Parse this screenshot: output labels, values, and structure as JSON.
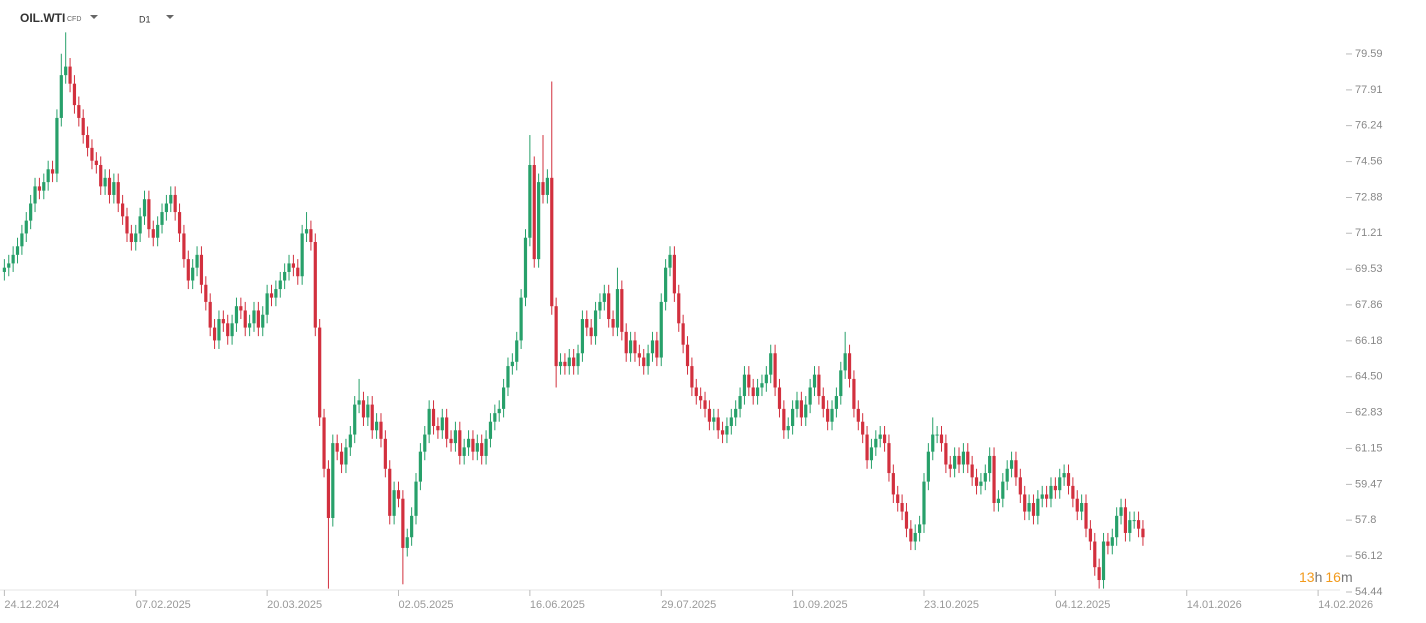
{
  "header": {
    "symbol": "OIL.WTI",
    "instrument_type": "CFD",
    "timeframe": "D1"
  },
  "countdown": {
    "hours": "13",
    "hours_unit": "h",
    "minutes": "16",
    "minutes_unit": "m"
  },
  "chart_data": {
    "type": "candlestick",
    "up_color": "#27a06a",
    "down_color": "#d2303e",
    "xlim": [
      -1,
      305
    ],
    "xticks": [
      {
        "value": 0,
        "label": "24.12.2024"
      },
      {
        "value": 30,
        "label": "07.02.2025"
      },
      {
        "value": 60,
        "label": "20.03.2025"
      },
      {
        "value": 90,
        "label": "02.05.2025"
      },
      {
        "value": 120,
        "label": "16.06.2025"
      },
      {
        "value": 150,
        "label": "29.07.2025"
      },
      {
        "value": 180,
        "label": "10.09.2025"
      },
      {
        "value": 210,
        "label": "23.10.2025"
      },
      {
        "value": 240,
        "label": "04.12.2025"
      },
      {
        "value": 270,
        "label": "14.01.2026"
      },
      {
        "value": 300,
        "label": "14.02.2026"
      }
    ],
    "ylim": [
      54.3,
      80.71
    ],
    "yticks": [
      79.59,
      77.91,
      76.24,
      74.56,
      72.88,
      71.21,
      69.53,
      67.86,
      66.18,
      {
        "value": 64.5,
        "label": "64.50"
      },
      62.83,
      61.15,
      59.47,
      57.8,
      56.12,
      54.44
    ],
    "open": [
      69.4,
      69.6,
      69.8,
      70.2,
      70.6,
      71.2,
      71.8,
      72.6,
      73.4,
      73.2,
      73.6,
      74.2,
      74.0,
      76.6,
      78.6,
      79.0,
      78.2,
      77.2,
      76.6,
      75.8,
      75.2,
      74.6,
      74.4,
      73.4,
      73.8,
      73.0,
      73.6,
      72.6,
      72.0,
      71.2,
      70.8,
      71.2,
      72.0,
      72.8,
      71.4,
      71.0,
      71.6,
      72.2,
      72.6,
      73.0,
      72.2,
      71.2,
      70.0,
      69.0,
      69.6,
      70.2,
      68.8,
      68.0,
      66.8,
      66.2,
      67.2,
      67.0,
      66.4,
      67.0,
      67.8,
      67.6,
      66.8,
      67.0,
      67.6,
      66.8,
      67.4,
      68.4,
      68.2,
      68.6,
      69.0,
      69.4,
      69.8,
      69.6,
      69.2,
      71.2,
      71.4,
      70.8,
      66.8,
      62.6,
      60.2,
      57.9,
      61.4,
      61.0,
      60.4,
      61.2,
      61.8,
      63.2,
      63.4,
      62.6,
      63.2,
      62.0,
      62.4,
      61.6,
      60.2,
      58.0,
      59.2,
      58.8,
      56.5,
      57.0,
      58.0,
      59.6,
      61.0,
      61.8,
      63.0,
      62.2,
      62.0,
      62.6,
      61.6,
      61.4,
      62.0,
      60.8,
      61.2,
      61.6,
      61.0,
      61.4,
      60.8,
      61.6,
      62.4,
      62.8,
      63.0,
      64.0,
      65.0,
      65.2,
      66.2,
      68.2,
      71.0,
      74.4,
      70.0,
      73.6,
      73.0,
      73.8,
      67.8,
      65.0,
      65.2,
      65.0,
      65.4,
      65.0,
      65.6,
      67.2,
      66.8,
      66.4,
      67.6,
      68.0,
      68.4,
      67.2,
      66.8,
      68.6,
      66.6,
      65.6,
      66.2,
      65.6,
      65.4,
      65.0,
      65.6,
      66.2,
      65.4,
      68.0,
      69.6,
      70.2,
      68.4,
      67.0,
      66.0,
      65.0,
      64.0,
      63.6,
      63.4,
      63.0,
      62.4,
      62.6,
      62.0,
      61.8,
      62.2,
      62.6,
      63.0,
      63.6,
      64.6,
      64.0,
      63.6,
      64.0,
      64.2,
      64.6,
      65.6,
      64.0,
      63.0,
      62.0,
      62.2,
      63.0,
      63.4,
      62.6,
      63.2,
      64.0,
      64.6,
      63.6,
      63.0,
      62.4,
      63.0,
      63.6,
      64.8,
      65.6,
      64.4,
      63.0,
      62.4,
      61.8,
      60.6,
      61.2,
      61.6,
      61.8,
      61.4,
      60.0,
      59.0,
      58.6,
      58.2,
      57.4,
      56.8,
      57.2,
      57.6,
      59.6,
      61.0,
      61.8,
      61.8,
      61.4,
      60.4,
      60.2,
      60.8,
      60.4,
      61.0,
      60.4,
      59.8,
      59.4,
      59.6,
      60.0,
      60.8,
      58.6,
      58.8,
      59.6,
      60.2,
      60.6,
      59.8,
      59.0,
      58.2,
      58.6,
      58.0,
      58.8,
      59.0,
      58.8,
      59.4,
      59.2,
      59.8,
      60.0,
      59.4,
      58.8,
      58.2,
      58.6,
      57.4,
      56.8,
      55.6,
      55.0,
      56.8,
      56.6,
      57.0,
      58.0,
      58.4,
      57.2,
      57.8,
      57.8,
      57.4
    ],
    "high": [
      70.0,
      70.2,
      70.6,
      71.0,
      71.6,
      72.2,
      73.0,
      73.8,
      73.8,
      74.0,
      74.6,
      74.6,
      77.0,
      79.6,
      80.6,
      79.4,
      78.6,
      77.6,
      77.0,
      76.2,
      75.6,
      75.0,
      74.8,
      74.2,
      74.2,
      74.0,
      74.0,
      73.0,
      72.4,
      71.6,
      71.6,
      72.4,
      73.2,
      73.2,
      71.8,
      72.0,
      72.6,
      73.0,
      73.4,
      73.4,
      72.6,
      71.6,
      70.4,
      70.0,
      70.6,
      70.6,
      69.2,
      68.4,
      67.2,
      67.6,
      67.6,
      67.4,
      67.4,
      68.2,
      68.2,
      68.0,
      67.4,
      68.0,
      68.0,
      67.8,
      68.8,
      68.8,
      69.0,
      69.4,
      69.8,
      70.2,
      70.2,
      70.0,
      71.6,
      72.2,
      71.8,
      71.2,
      67.2,
      63.0,
      60.6,
      61.8,
      61.8,
      61.4,
      61.6,
      62.2,
      63.6,
      64.4,
      63.8,
      63.6,
      63.6,
      62.8,
      62.8,
      62.0,
      60.6,
      59.6,
      59.6,
      59.2,
      57.4,
      58.4,
      60.0,
      61.4,
      62.2,
      63.4,
      63.4,
      62.6,
      63.0,
      63.0,
      62.0,
      62.4,
      62.4,
      61.6,
      62.0,
      62.0,
      61.8,
      61.8,
      62.0,
      62.8,
      63.2,
      63.4,
      64.4,
      65.4,
      65.6,
      66.6,
      68.6,
      71.4,
      75.8,
      74.8,
      74.0,
      75.8,
      74.2,
      78.3,
      68.2,
      65.6,
      65.6,
      65.8,
      65.8,
      66.0,
      67.6,
      67.6,
      67.2,
      68.0,
      68.4,
      68.8,
      68.8,
      67.6,
      69.6,
      69.0,
      67.0,
      66.6,
      66.6,
      66.0,
      65.8,
      66.0,
      66.6,
      66.6,
      68.4,
      70.0,
      70.6,
      70.6,
      68.8,
      67.4,
      66.4,
      65.4,
      64.4,
      64.0,
      63.8,
      63.4,
      63.0,
      63.0,
      62.4,
      62.6,
      63.0,
      63.4,
      64.0,
      65.0,
      65.0,
      64.4,
      64.4,
      64.6,
      65.0,
      66.0,
      66.0,
      64.4,
      63.4,
      62.6,
      63.4,
      63.8,
      63.8,
      63.6,
      64.4,
      65.0,
      65.0,
      64.0,
      63.4,
      63.4,
      64.0,
      65.2,
      66.6,
      66.0,
      64.8,
      63.4,
      62.8,
      62.2,
      61.6,
      62.0,
      62.2,
      62.2,
      61.8,
      60.4,
      59.4,
      59.0,
      58.6,
      57.8,
      57.6,
      58.0,
      60.0,
      61.4,
      62.6,
      62.2,
      62.2,
      61.8,
      60.8,
      61.2,
      61.2,
      61.4,
      61.4,
      60.8,
      60.2,
      60.0,
      60.4,
      61.2,
      61.2,
      59.2,
      60.0,
      60.6,
      61.0,
      61.0,
      60.2,
      59.4,
      59.0,
      59.0,
      59.2,
      59.4,
      59.4,
      59.8,
      59.8,
      60.2,
      60.4,
      60.4,
      59.8,
      59.2,
      59.0,
      59.0,
      57.8,
      57.2,
      56.0,
      57.2,
      57.2,
      57.4,
      58.4,
      58.8,
      58.8,
      58.2,
      58.2,
      58.2,
      57.8
    ],
    "low": [
      69.0,
      69.2,
      69.4,
      69.8,
      70.2,
      70.8,
      71.4,
      72.2,
      72.8,
      72.8,
      73.2,
      73.6,
      73.6,
      76.2,
      78.2,
      77.8,
      76.8,
      76.2,
      75.4,
      74.8,
      74.2,
      74.0,
      73.0,
      73.0,
      72.6,
      72.6,
      72.2,
      71.6,
      70.8,
      70.4,
      70.4,
      70.8,
      71.6,
      71.0,
      70.6,
      70.6,
      71.2,
      71.8,
      72.2,
      71.8,
      70.8,
      69.6,
      68.6,
      68.6,
      69.2,
      68.4,
      67.6,
      66.4,
      65.8,
      65.8,
      66.6,
      66.0,
      66.0,
      66.6,
      67.2,
      66.4,
      66.4,
      66.6,
      66.4,
      66.4,
      67.0,
      67.8,
      67.8,
      68.2,
      68.6,
      69.0,
      69.2,
      68.8,
      68.8,
      70.8,
      70.4,
      66.4,
      62.2,
      59.8,
      54.6,
      57.5,
      60.6,
      60.0,
      60.0,
      60.8,
      61.4,
      62.8,
      62.2,
      62.2,
      61.6,
      61.6,
      61.2,
      59.8,
      57.6,
      57.6,
      58.4,
      54.8,
      56.1,
      56.6,
      57.6,
      59.2,
      60.6,
      61.4,
      61.8,
      61.6,
      61.6,
      61.2,
      61.0,
      61.0,
      60.4,
      60.4,
      60.8,
      60.6,
      60.6,
      60.4,
      60.4,
      61.2,
      62.0,
      62.4,
      62.6,
      63.6,
      64.6,
      64.8,
      65.8,
      67.8,
      70.6,
      69.6,
      69.6,
      72.6,
      72.6,
      67.4,
      64.0,
      64.6,
      64.6,
      64.6,
      64.6,
      64.6,
      65.2,
      66.4,
      66.0,
      66.0,
      67.2,
      67.6,
      66.8,
      66.4,
      66.4,
      66.2,
      65.2,
      65.2,
      65.2,
      65.0,
      64.6,
      64.6,
      65.2,
      65.0,
      65.0,
      67.6,
      69.2,
      68.0,
      66.6,
      65.6,
      64.6,
      63.6,
      63.2,
      63.0,
      62.6,
      62.0,
      62.0,
      61.6,
      61.4,
      61.4,
      61.8,
      62.2,
      62.6,
      63.2,
      63.6,
      63.2,
      63.2,
      63.6,
      63.8,
      64.2,
      63.6,
      62.6,
      61.6,
      61.6,
      61.8,
      62.6,
      62.2,
      62.2,
      62.8,
      63.6,
      63.2,
      62.6,
      62.0,
      62.0,
      62.6,
      63.2,
      64.4,
      64.0,
      62.6,
      62.0,
      61.4,
      60.2,
      60.2,
      60.8,
      61.2,
      61.0,
      59.6,
      58.6,
      58.2,
      57.8,
      57.0,
      56.4,
      56.4,
      56.8,
      57.2,
      59.2,
      60.6,
      61.4,
      61.0,
      60.0,
      59.8,
      59.8,
      60.0,
      60.0,
      60.0,
      59.4,
      59.0,
      59.0,
      59.2,
      59.6,
      58.2,
      58.2,
      58.4,
      59.2,
      59.8,
      59.4,
      58.6,
      57.8,
      57.8,
      57.6,
      57.6,
      58.4,
      58.4,
      58.4,
      58.8,
      58.8,
      59.4,
      59.0,
      58.4,
      57.8,
      57.8,
      57.0,
      56.4,
      55.2,
      54.6,
      54.6,
      56.2,
      56.2,
      56.6,
      57.6,
      56.8,
      56.8,
      57.4,
      57.0,
      56.6
    ],
    "close": [
      69.6,
      69.8,
      70.2,
      70.6,
      71.2,
      71.8,
      72.6,
      73.4,
      73.2,
      73.6,
      74.2,
      74.0,
      76.6,
      78.6,
      79.0,
      78.2,
      77.2,
      76.6,
      75.8,
      75.2,
      74.6,
      74.4,
      73.4,
      73.8,
      73.0,
      73.6,
      72.6,
      72.0,
      71.2,
      70.8,
      71.2,
      72.0,
      72.8,
      71.4,
      71.0,
      71.6,
      72.2,
      72.6,
      73.0,
      72.2,
      71.2,
      70.0,
      69.0,
      69.6,
      70.2,
      68.8,
      68.0,
      66.8,
      66.2,
      67.2,
      67.0,
      66.4,
      67.0,
      67.8,
      67.6,
      66.8,
      67.0,
      67.6,
      66.8,
      67.4,
      68.4,
      68.2,
      68.6,
      69.0,
      69.4,
      69.8,
      69.6,
      69.2,
      71.2,
      71.4,
      70.8,
      66.8,
      62.6,
      60.2,
      57.9,
      61.4,
      61.0,
      60.4,
      61.2,
      61.8,
      63.2,
      63.4,
      62.6,
      63.2,
      62.0,
      62.4,
      61.6,
      60.2,
      58.0,
      59.2,
      58.8,
      56.5,
      57.0,
      58.0,
      59.6,
      61.0,
      61.8,
      63.0,
      62.2,
      62.0,
      62.6,
      61.6,
      61.4,
      62.0,
      60.8,
      61.2,
      61.6,
      61.0,
      61.4,
      60.8,
      61.6,
      62.4,
      62.8,
      63.0,
      64.0,
      65.0,
      65.2,
      66.2,
      68.2,
      71.0,
      74.4,
      70.0,
      73.6,
      73.0,
      73.8,
      67.8,
      65.0,
      65.2,
      65.0,
      65.4,
      65.0,
      65.6,
      67.2,
      66.8,
      66.4,
      67.6,
      68.0,
      68.4,
      67.2,
      66.8,
      68.6,
      66.6,
      65.6,
      66.2,
      65.6,
      65.4,
      65.0,
      65.6,
      66.2,
      65.4,
      68.0,
      69.6,
      70.2,
      68.4,
      67.0,
      66.0,
      65.0,
      64.0,
      63.6,
      63.4,
      63.0,
      62.4,
      62.6,
      62.0,
      61.8,
      62.2,
      62.6,
      63.0,
      63.6,
      64.6,
      64.0,
      63.6,
      64.0,
      64.2,
      64.6,
      65.6,
      64.0,
      63.0,
      62.0,
      62.2,
      63.0,
      63.4,
      62.6,
      63.2,
      64.0,
      64.6,
      63.6,
      63.0,
      62.4,
      63.0,
      63.6,
      64.8,
      65.6,
      64.4,
      63.0,
      62.4,
      61.8,
      60.6,
      61.2,
      61.6,
      61.8,
      61.4,
      60.0,
      59.0,
      58.6,
      58.2,
      57.4,
      56.8,
      57.2,
      57.6,
      59.6,
      61.0,
      61.8,
      61.8,
      61.4,
      60.4,
      60.2,
      60.8,
      60.4,
      61.0,
      60.4,
      59.8,
      59.4,
      59.6,
      60.0,
      60.8,
      58.6,
      58.8,
      59.6,
      60.2,
      60.6,
      59.8,
      59.0,
      58.2,
      58.6,
      58.0,
      58.8,
      59.0,
      58.8,
      59.4,
      59.2,
      59.8,
      60.0,
      59.4,
      58.8,
      58.2,
      58.6,
      57.4,
      56.8,
      55.6,
      55.0,
      56.8,
      56.6,
      57.0,
      58.0,
      58.4,
      57.2,
      57.8,
      57.8,
      57.4,
      57.0
    ]
  }
}
